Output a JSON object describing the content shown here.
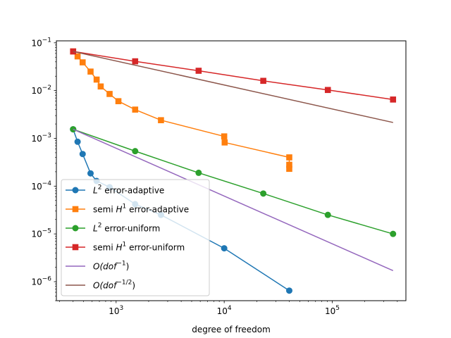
{
  "chart_data": {
    "type": "line",
    "xscale": "log",
    "yscale": "log",
    "xlabel": "degree of freedom",
    "ylabel": "",
    "xlim": [
      280,
      480000
    ],
    "ylim": [
      4e-07,
      0.11
    ],
    "grid": false,
    "legend_position": "lower-left",
    "x_ticks": [
      {
        "value": 1000,
        "base": "10",
        "exp": "3"
      },
      {
        "value": 10000,
        "base": "10",
        "exp": "4"
      },
      {
        "value": 100000,
        "base": "10",
        "exp": "5"
      }
    ],
    "y_ticks": [
      {
        "value": 1e-06,
        "base": "10",
        "exp": "−6"
      },
      {
        "value": 1e-05,
        "base": "10",
        "exp": "−5"
      },
      {
        "value": 0.0001,
        "base": "10",
        "exp": "−4"
      },
      {
        "value": 0.001,
        "base": "10",
        "exp": "−3"
      },
      {
        "value": 0.01,
        "base": "10",
        "exp": "−2"
      },
      {
        "value": 0.1,
        "base": "10",
        "exp": "−1"
      }
    ],
    "series": [
      {
        "name": "L² error-adaptive",
        "legend": {
          "pre": "",
          "sym": "L",
          "sup": "2",
          "post": " error-adaptive"
        },
        "color": "#1f77b4",
        "marker": "circle",
        "x": [
          400,
          440,
          490,
          580,
          660,
          870,
          1500,
          2600,
          10000,
          40000
        ],
        "y": [
          0.00155,
          0.00085,
          0.00047,
          0.000185,
          0.000128,
          9.5e-05,
          4.2e-05,
          2.5e-05,
          5e-06,
          6.5e-07
        ]
      },
      {
        "name": "semi H¹ error-adaptive",
        "legend": {
          "pre": "semi ",
          "sym": "H",
          "sup": "1",
          "post": " error-adaptive"
        },
        "color": "#ff7f0e",
        "marker": "square",
        "x": [
          400,
          440,
          490,
          580,
          660,
          720,
          870,
          1050,
          1500,
          2600,
          10000,
          10100,
          40000,
          40000,
          40000
        ],
        "y": [
          0.066,
          0.052,
          0.039,
          0.025,
          0.017,
          0.0122,
          0.0085,
          0.006,
          0.004,
          0.0024,
          0.0011,
          0.00082,
          0.0004,
          0.00028,
          0.00023
        ]
      },
      {
        "name": "L² error-uniform",
        "legend": {
          "pre": "",
          "sym": "L",
          "sup": "2",
          "post": " error-uniform"
        },
        "color": "#2ca02c",
        "marker": "circle",
        "x": [
          400,
          1500,
          5800,
          23000,
          91000,
          365000
        ],
        "y": [
          0.00155,
          0.00054,
          0.00019,
          7e-05,
          2.5e-05,
          1e-05
        ]
      },
      {
        "name": "semi H¹ error-uniform",
        "legend": {
          "pre": "semi ",
          "sym": "H",
          "sup": "1",
          "post": " error-uniform"
        },
        "color": "#d62728",
        "marker": "square",
        "x": [
          400,
          1500,
          5800,
          23000,
          91000,
          365000
        ],
        "y": [
          0.066,
          0.041,
          0.026,
          0.016,
          0.0103,
          0.0065
        ]
      },
      {
        "name": "O(dof⁻¹)",
        "legend": {
          "pre": "",
          "sym": "O(dof",
          "sup": "−1",
          "post": ")"
        },
        "color": "#9467bd",
        "marker": "none",
        "x": [
          400,
          365000
        ],
        "y": [
          0.00155,
          1.7e-06
        ]
      },
      {
        "name": "O(dof⁻¹ᐟ²)",
        "legend": {
          "pre": "",
          "sym": "O(dof",
          "sup": "−1/2",
          "post": ")"
        },
        "color": "#8c564b",
        "marker": "none",
        "x": [
          400,
          365000
        ],
        "y": [
          0.066,
          0.00215
        ]
      }
    ]
  }
}
